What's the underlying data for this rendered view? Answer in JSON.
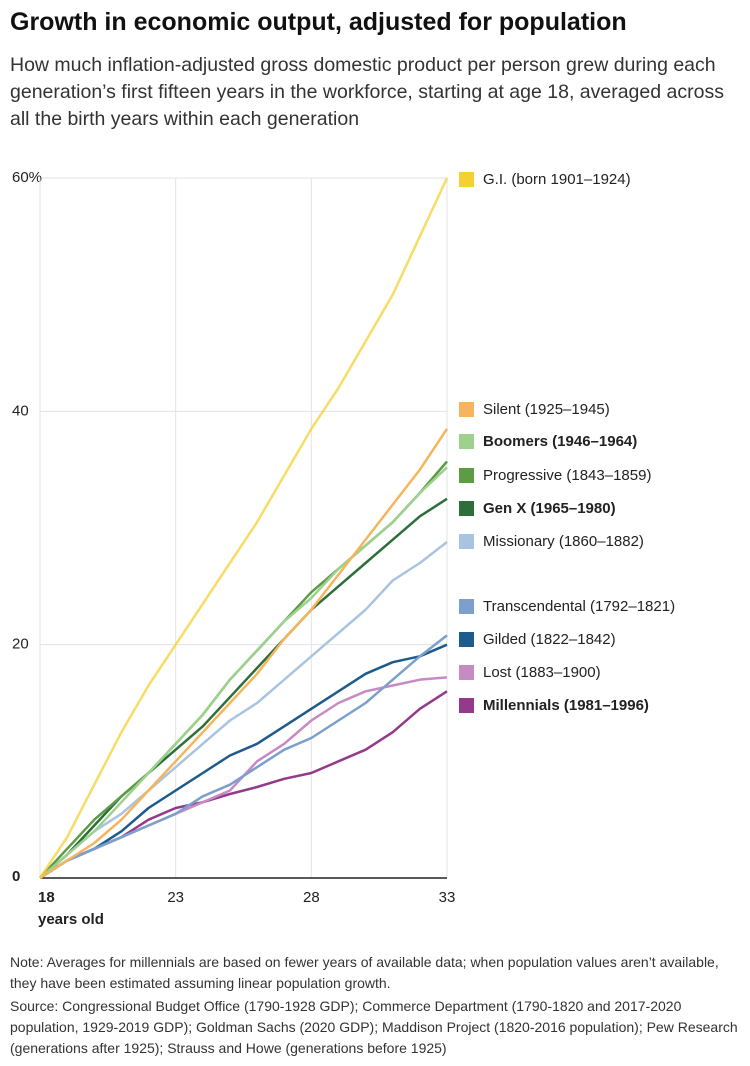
{
  "chart_data": {
    "type": "line",
    "title": "Growth in economic output, adjusted for population",
    "subtitle": "How much inflation-adjusted gross domestic product per person grew during each generation’s first fifteen years in the workforce, starting at age 18, averaged across all the birth years within each generation",
    "x_label": "years old",
    "x": [
      18,
      19,
      20,
      21,
      22,
      23,
      24,
      25,
      26,
      27,
      28,
      29,
      30,
      31,
      32,
      33
    ],
    "xlim": [
      18,
      33
    ],
    "xticks": [
      18,
      23,
      28,
      33
    ],
    "ylim": [
      0,
      60
    ],
    "yticks": [
      0,
      20,
      40,
      {
        "value": 60,
        "label": "60%"
      }
    ],
    "grid": true,
    "series": [
      {
        "name": "G.I. (born 1901–1924)",
        "color": "#f5d033",
        "values": [
          0,
          3.5,
          8,
          12.5,
          16.5,
          20,
          23.5,
          27,
          30.5,
          34.5,
          38.5,
          42,
          46,
          50,
          55,
          60
        ]
      },
      {
        "name": "Silent (1925–1945)",
        "color": "#f6b55c",
        "values": [
          0,
          1.5,
          3,
          5,
          7.5,
          10,
          12.5,
          15,
          17.5,
          20.5,
          23,
          26,
          29,
          32,
          35,
          38.5
        ]
      },
      {
        "name": "Boomers (1946–1964)",
        "color": "#9dd18c",
        "bold": true,
        "values": [
          0,
          2,
          4,
          6.5,
          9,
          11.5,
          14,
          17,
          19.5,
          22,
          24,
          26.5,
          28.5,
          30.5,
          33,
          35.2
        ]
      },
      {
        "name": "Progressive (1843–1859)",
        "color": "#5d9b45",
        "values": [
          0,
          2.5,
          5,
          7,
          9,
          11.5,
          14,
          17,
          19.5,
          22,
          24.5,
          26.5,
          28.5,
          30.5,
          33,
          35.7
        ]
      },
      {
        "name": "Gen X (1965–1980)",
        "color": "#2d6e3b",
        "bold": true,
        "values": [
          0,
          2,
          4.5,
          7,
          9,
          11,
          13,
          15.5,
          18,
          20.5,
          23,
          25,
          27,
          29,
          31,
          32.5
        ]
      },
      {
        "name": "Missionary (1860–1882)",
        "color": "#a9c4e0",
        "values": [
          0,
          2,
          4,
          5.5,
          7.5,
          9.5,
          11.5,
          13.5,
          15,
          17,
          19,
          21,
          23,
          25.5,
          27,
          28.8
        ]
      },
      {
        "name": "Transcendental (1792–1821)",
        "color": "#7c9fcc",
        "values": [
          0,
          1.5,
          2.5,
          3.5,
          4.5,
          5.5,
          7,
          8,
          9.5,
          11,
          12,
          13.5,
          15,
          17,
          19,
          20.8
        ]
      },
      {
        "name": "Gilded (1822–1842)",
        "color": "#1d5b8c",
        "values": [
          0,
          1.5,
          2.5,
          4,
          6,
          7.5,
          9,
          10.5,
          11.5,
          13,
          14.5,
          16,
          17.5,
          18.5,
          19,
          20
        ]
      },
      {
        "name": "Lost (1883–1900)",
        "color": "#c88ac4",
        "values": [
          0,
          1.5,
          2.5,
          3.5,
          4.5,
          5.5,
          6.5,
          7.5,
          10,
          11.5,
          13.5,
          15,
          16,
          16.5,
          17,
          17.2
        ]
      },
      {
        "name": "Millennials (1981–1996)",
        "color": "#933b8a",
        "bold": true,
        "values": [
          0,
          1.5,
          2.5,
          3.5,
          5,
          6,
          6.5,
          7.2,
          7.8,
          8.5,
          9,
          10,
          11,
          12.5,
          14.5,
          16
        ]
      }
    ],
    "note": "Note: Averages for millennials are based on fewer years of available data; when population values aren’t available, they have been estimated assuming linear population growth.",
    "source": "Source: Congressional Budget Office (1790-1928 GDP); Commerce Department (1790-1820 and 2017-2020 population, 1929-2019 GDP); Goldman Sachs (2020 GDP); Maddison Project (1820-2016 population); Pew Research (generations after 1925); Strauss and Howe (generations before 1925)"
  }
}
